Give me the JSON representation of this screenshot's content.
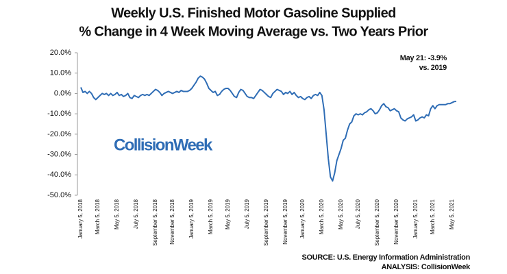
{
  "chart_data": {
    "type": "line",
    "title": "Weekly U.S. Finished Motor Gasoline Supplied",
    "subtitle": "% Change in 4 Week Moving Average vs. Two Years Prior",
    "annotation": [
      "May 21: -3.9%",
      "vs. 2019"
    ],
    "watermark": "CollisionWeek",
    "source": [
      "SOURCE: U.S. Energy Information Administration",
      "ANALYSIS: CollisionWeek"
    ],
    "color": "#2f6db5",
    "ylim": [
      -50,
      20
    ],
    "yticks": [
      {
        "value": 20,
        "label": "20.0%"
      },
      {
        "value": 10,
        "label": "10.0%"
      },
      {
        "value": 0,
        "label": "0.0%"
      },
      {
        "value": -10,
        "label": "-10.0%"
      },
      {
        "value": -20,
        "label": "-20.0%"
      },
      {
        "value": -30,
        "label": "-30.0%"
      },
      {
        "value": -40,
        "label": "-40.0%"
      },
      {
        "value": -50,
        "label": "-50.0%"
      }
    ],
    "categories": [
      "January 5, 2018",
      null,
      null,
      null,
      null,
      null,
      null,
      null,
      "March 5, 2018",
      null,
      null,
      null,
      null,
      null,
      null,
      null,
      null,
      "May 5, 2018",
      null,
      null,
      null,
      null,
      null,
      null,
      null,
      null,
      "July 5, 2018",
      null,
      null,
      null,
      null,
      null,
      null,
      null,
      null,
      "September 5, 2018",
      null,
      null,
      null,
      null,
      null,
      null,
      null,
      "November 5, 2018",
      null,
      null,
      null,
      null,
      null,
      null,
      null,
      null,
      "January 5, 2019",
      null,
      null,
      null,
      null,
      null,
      null,
      null,
      null,
      "March 5, 2019",
      null,
      null,
      null,
      null,
      null,
      null,
      null,
      "May 5, 2019",
      null,
      null,
      null,
      null,
      null,
      null,
      null,
      null,
      "July 5, 2019",
      null,
      null,
      null,
      null,
      null,
      null,
      null,
      null,
      "September 5, 2019",
      null,
      null,
      null,
      null,
      null,
      null,
      null,
      null,
      "November 5, 2019",
      null,
      null,
      null,
      null,
      null,
      null,
      null,
      "January 5, 2020",
      null,
      null,
      null,
      null,
      null,
      null,
      null,
      null,
      "March 5, 2020",
      null,
      null,
      null,
      null,
      null,
      null,
      null,
      null,
      "May 5, 2020",
      null,
      null,
      null,
      null,
      null,
      null,
      null,
      "July 5, 2020",
      null,
      null,
      null,
      null,
      null,
      null,
      null,
      null,
      "September 5, 2020",
      null,
      null,
      null,
      null,
      null,
      null,
      null,
      null,
      "November 5, 2020",
      null,
      null,
      null,
      null,
      null,
      null,
      null,
      null,
      "January 5, 2021",
      null,
      null,
      null,
      null,
      null,
      null,
      null,
      "March 5, 2021",
      null,
      null,
      null,
      null,
      null,
      null,
      null,
      null,
      "May 5, 2021",
      null,
      null
    ],
    "values": [
      3,
      0.5,
      1,
      0,
      1,
      0,
      -2,
      -3,
      -2,
      -1,
      0,
      -0.5,
      0,
      -1,
      0,
      -1,
      -0.5,
      0.5,
      -1,
      -0.5,
      -1.5,
      -1,
      0,
      -2,
      -2.5,
      -1,
      -1.5,
      -2,
      -1,
      -0.5,
      -1,
      -0.5,
      -1,
      0,
      1,
      2,
      1.5,
      0.5,
      -1,
      0,
      0.5,
      1,
      0.5,
      0,
      0.5,
      1,
      0.5,
      1.5,
      1,
      1,
      1,
      1.5,
      2.5,
      4,
      5.5,
      7.5,
      8.5,
      8,
      7,
      5,
      2.5,
      1.5,
      0.5,
      1,
      -1,
      -0.5,
      1,
      2,
      2.5,
      2.5,
      1.5,
      0,
      -1.5,
      -2,
      0.5,
      2,
      1.5,
      0,
      -1.5,
      -2,
      -2,
      -2.5,
      -1,
      0.5,
      2,
      1.5,
      0.5,
      -0.5,
      -1.5,
      -2,
      0,
      1,
      2,
      1.5,
      1,
      -0.5,
      0.5,
      0,
      1,
      -0.5,
      0.5,
      -1,
      -2,
      -1.5,
      -2.5,
      -3,
      -2,
      -1.5,
      -2.5,
      -1,
      -0.5,
      -1,
      0.5,
      -1,
      -8,
      -20,
      -32,
      -41,
      -43,
      -39,
      -33,
      -30,
      -27,
      -23,
      -22,
      -18,
      -15,
      -14,
      -11,
      -10,
      -10.5,
      -10,
      -10.5,
      -9.5,
      -9,
      -8,
      -7.5,
      -8.5,
      -10,
      -9.5,
      -8,
      -6,
      -5,
      -6.5,
      -7,
      -8.5,
      -8,
      -7.5,
      -8.5,
      -9,
      -12,
      -13,
      -13.5,
      -12.5,
      -12,
      -11.5,
      -10.5,
      -13.5,
      -13,
      -12,
      -11.5,
      -12,
      -10.5,
      -11,
      -7.5,
      -6,
      -7.5,
      -6,
      -5.5,
      -5.5,
      -5.5,
      -5.5,
      -5,
      -5,
      -4.5,
      -4,
      -3.9
    ]
  }
}
